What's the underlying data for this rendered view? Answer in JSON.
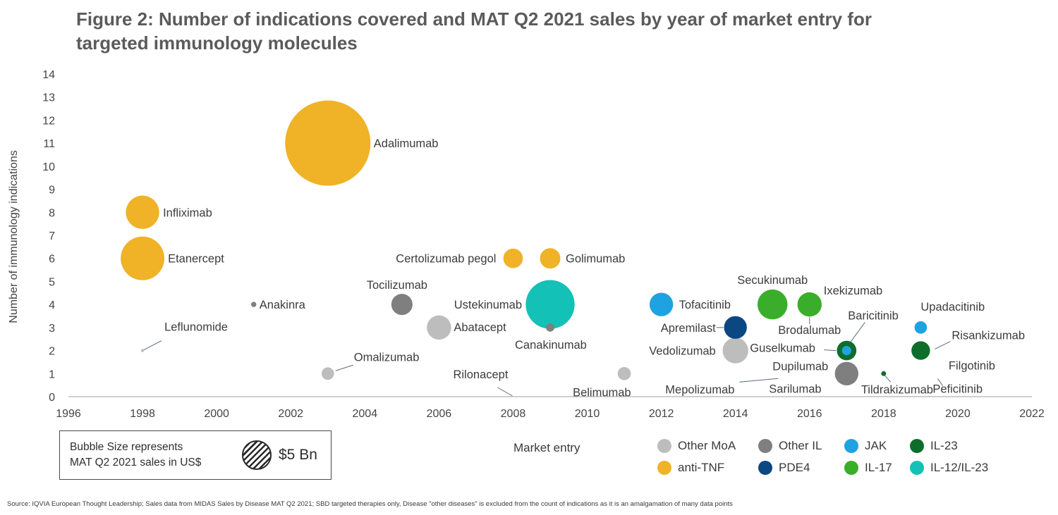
{
  "title_lines": [
    "Figure 2: Number of indications covered and MAT Q2 2021 sales by year of market entry for",
    "targeted immunology molecules"
  ],
  "colors": {
    "Other MoA": "#bdbdbd",
    "Other IL": "#7f7f7f",
    "JAK": "#1fa3e0",
    "IL-23": "#0d6e2b",
    "anti-TNF": "#f0b226",
    "PDE4": "#0b4780",
    "IL-17": "#3aae2b",
    "IL-12/IL-23": "#14c1b7"
  },
  "chart_data": {
    "type": "scatter",
    "ylabel": "Number of immunology indications",
    "xlabel": "Market entry",
    "xlim": [
      1996,
      2022
    ],
    "ylim": [
      0,
      14
    ],
    "xticks": [
      1996,
      1998,
      2000,
      2002,
      2004,
      2006,
      2008,
      2010,
      2012,
      2014,
      2016,
      2018,
      2020,
      2022
    ],
    "yticks": [
      0,
      1,
      2,
      3,
      4,
      5,
      6,
      7,
      8,
      9,
      10,
      11,
      12,
      13,
      14
    ],
    "grid": false,
    "legend_position": "bottom-right",
    "points": [
      {
        "name": "Adalimumab",
        "x": 2003,
        "y": 11,
        "category": "anti-TNF",
        "sales_bn": 21.0
      },
      {
        "name": "Infliximab",
        "x": 1998,
        "y": 8,
        "category": "anti-TNF",
        "sales_bn": 3.2
      },
      {
        "name": "Etanercept",
        "x": 1998,
        "y": 6,
        "category": "anti-TNF",
        "sales_bn": 5.5
      },
      {
        "name": "Leflunomide",
        "x": 1998,
        "y": 2,
        "category": "Other MoA",
        "sales_bn": 0.02
      },
      {
        "name": "Anakinra",
        "x": 2001,
        "y": 4,
        "category": "Other IL",
        "sales_bn": 0.08
      },
      {
        "name": "Omalizumab",
        "x": 2003,
        "y": 1,
        "category": "Other MoA",
        "sales_bn": 0.45
      },
      {
        "name": "Tocilizumab",
        "x": 2005,
        "y": 4,
        "category": "Other IL",
        "sales_bn": 1.3
      },
      {
        "name": "Abatacept",
        "x": 2006,
        "y": 3,
        "category": "Other MoA",
        "sales_bn": 1.7
      },
      {
        "name": "Rilonacept",
        "x": 2008,
        "y": 0,
        "category": "Other IL",
        "sales_bn": 0.0
      },
      {
        "name": "Certolizumab pegol",
        "x": 2008,
        "y": 6,
        "category": "anti-TNF",
        "sales_bn": 1.1
      },
      {
        "name": "Golimumab",
        "x": 2009,
        "y": 6,
        "category": "anti-TNF",
        "sales_bn": 1.2
      },
      {
        "name": "Ustekinumab",
        "x": 2009,
        "y": 4,
        "category": "IL-12/IL-23",
        "sales_bn": 6.9
      },
      {
        "name": "Canakinumab",
        "x": 2009,
        "y": 3,
        "category": "Other IL",
        "sales_bn": 0.2
      },
      {
        "name": "Belimumab",
        "x": 2011,
        "y": 1,
        "category": "Other MoA",
        "sales_bn": 0.5
      },
      {
        "name": "Tofacitinib",
        "x": 2012,
        "y": 4,
        "category": "JAK",
        "sales_bn": 1.6
      },
      {
        "name": "Apremilast",
        "x": 2014,
        "y": 3,
        "category": "PDE4",
        "sales_bn": 1.5
      },
      {
        "name": "Vedolizumab",
        "x": 2014,
        "y": 2,
        "category": "Other MoA",
        "sales_bn": 1.9
      },
      {
        "name": "Secukinumab",
        "x": 2015,
        "y": 4,
        "category": "IL-17",
        "sales_bn": 2.6
      },
      {
        "name": "Ixekizumab",
        "x": 2016,
        "y": 4,
        "category": "IL-17",
        "sales_bn": 1.7
      },
      {
        "name": "Brodalumab",
        "x": 2016,
        "y": 4,
        "category": "IL-17",
        "sales_bn": 0.0
      },
      {
        "name": "Baricitinib",
        "x": 2017,
        "y": 2,
        "category": "JAK",
        "sales_bn": 0.25
      },
      {
        "name": "Guselkumab",
        "x": 2017,
        "y": 2,
        "category": "IL-23",
        "sales_bn": 1.1
      },
      {
        "name": "Sarilumab",
        "x": 2017,
        "y": 1,
        "category": "Other IL",
        "sales_bn": 1.6
      },
      {
        "name": "Dupilumab",
        "x": 2017,
        "y": 1,
        "category": "Other IL",
        "sales_bn": 0.0
      },
      {
        "name": "Mepolizumab",
        "x": 2017,
        "y": 1,
        "category": "Other IL",
        "sales_bn": 0.0
      },
      {
        "name": "Tildrakizumab",
        "x": 2018,
        "y": 1,
        "category": "IL-23",
        "sales_bn": 0.07
      },
      {
        "name": "Upadacitinib",
        "x": 2019,
        "y": 3,
        "category": "JAK",
        "sales_bn": 0.45
      },
      {
        "name": "Risankizumab",
        "x": 2019,
        "y": 2,
        "category": "IL-23",
        "sales_bn": 1.0
      },
      {
        "name": "Peficitinib",
        "x": 2019,
        "y": 1,
        "category": "JAK",
        "sales_bn": 0.0
      },
      {
        "name": "Filgotinib",
        "x": 2020,
        "y": 1,
        "category": "JAK",
        "sales_bn": 0.0
      }
    ]
  },
  "size_box": {
    "line1": "Bubble Size represents",
    "line2": "MAT Q2 2021 sales in US$",
    "reference_value": "$5 Bn"
  },
  "legend": [
    "Other MoA",
    "Other IL",
    "JAK",
    "IL-23",
    "anti-TNF",
    "PDE4",
    "IL-17",
    "IL-12/IL-23"
  ],
  "source": "Source: IQVIA European Thought Leadership; Sales data from MIDAS Sales by Disease MAT Q2 2021; SBD targeted therapies only, Disease \"other diseases\" is excluded from the count of indications as it is an amalgamation of many data points"
}
